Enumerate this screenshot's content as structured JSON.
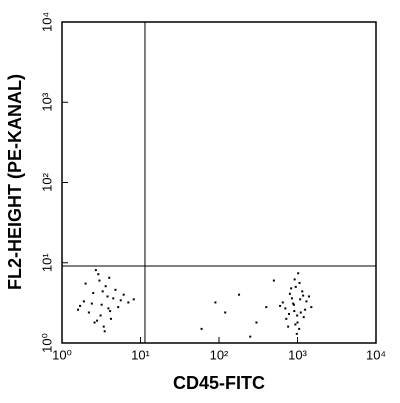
{
  "chart_data": {
    "type": "scatter",
    "xlabel": "CD45-FITC",
    "ylabel": "FL2-HEIGHT (PE-KANAL)",
    "xscale": "log",
    "yscale": "log",
    "color": "#000000",
    "xlim": [
      1,
      10000
    ],
    "ylim": [
      1,
      10000
    ],
    "xticks": [
      {
        "value": 1,
        "label": "10⁰"
      },
      {
        "value": 10,
        "label": "10¹"
      },
      {
        "value": 100,
        "label": "10²"
      },
      {
        "value": 1000,
        "label": "10³"
      },
      {
        "value": 10000,
        "label": "10⁴"
      }
    ],
    "yticks": [
      {
        "value": 1,
        "label": "10⁰"
      },
      {
        "value": 10,
        "label": "10¹"
      },
      {
        "value": 100,
        "label": "10²"
      },
      {
        "value": 1000,
        "label": "10³"
      },
      {
        "value": 10000,
        "label": "10⁴"
      }
    ],
    "quadrant": {
      "x": 11.4,
      "y": 9.1
    },
    "x": [
      3.2,
      2.5,
      4.1,
      3.6,
      1.9,
      5.2,
      2.8,
      3.0,
      4.5,
      2.2,
      6.1,
      3.4,
      2.9,
      1.7,
      3.8,
      4.8,
      2.4,
      3.1,
      5.6,
      2.0,
      3.5,
      4.2,
      2.7,
      7.0,
      3.3,
      1.6,
      4.0,
      2.6,
      3.9,
      8.2,
      900,
      1100,
      800,
      1000,
      1300,
      700,
      950,
      1200,
      850,
      1050,
      600,
      1400,
      920,
      780,
      1150,
      980,
      1250,
      880,
      1020,
      720,
      1080,
      940,
      1500,
      830,
      990,
      1180,
      760,
      1060,
      910,
      650,
      60,
      120,
      250,
      400,
      180,
      300,
      90,
      500
    ],
    "y": [
      3.0,
      4.2,
      2.5,
      5.1,
      3.3,
      2.8,
      1.9,
      6.0,
      3.6,
      2.4,
      4.0,
      1.6,
      7.2,
      2.9,
      3.8,
      4.6,
      3.1,
      2.2,
      3.4,
      5.5,
      1.4,
      2.0,
      8.1,
      3.2,
      4.4,
      2.6,
      6.5,
      1.8,
      2.7,
      3.5,
      3.0,
      2.4,
      4.1,
      1.8,
      3.3,
      2.7,
      5.0,
      2.1,
      3.6,
      1.5,
      2.9,
      3.8,
      6.2,
      2.3,
      4.4,
      1.3,
      2.6,
      3.1,
      7.4,
      2.0,
      3.5,
      1.7,
      2.8,
      4.8,
      2.2,
      3.9,
      1.6,
      5.6,
      2.5,
      3.2,
      1.5,
      2.4,
      1.2,
      2.8,
      4.0,
      1.8,
      3.2,
      6.0
    ]
  }
}
